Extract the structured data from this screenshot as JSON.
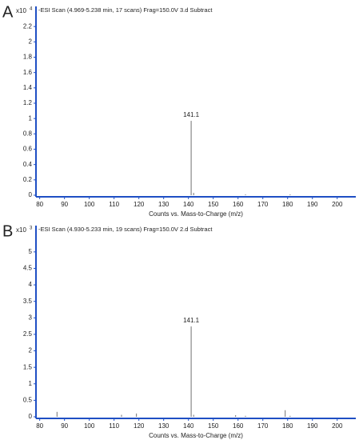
{
  "chart_data": [
    {
      "type": "stem",
      "panel_label": "A",
      "multiplier": "x10",
      "exponent": "4",
      "title": "-ESI Scan (4.969-5.238 min, 17 scans) Frag=150.0V 3.d  Subtract",
      "x_label": "Counts vs. Mass-to-Charge (m/z)",
      "x": [
        141.1,
        142.1,
        163.0,
        181.0
      ],
      "values": [
        0.97,
        0.03,
        0.01,
        0.01
      ],
      "color": "#8a8a8a",
      "axis_color": "#1f4fc4",
      "xlim": [
        78.5,
        207.5
      ],
      "xticks": [
        80,
        90,
        100,
        110,
        120,
        130,
        140,
        150,
        160,
        170,
        180,
        190,
        200
      ],
      "ylim": [
        0,
        2.4
      ],
      "yticks": [
        0,
        0.2,
        0.4,
        0.6,
        0.8,
        1,
        1.2,
        1.4,
        1.6,
        1.8,
        2,
        2.2
      ],
      "annotations": [
        {
          "text": "141.1",
          "x": 141.1,
          "y": 0.97
        }
      ]
    },
    {
      "type": "stem",
      "panel_label": "B",
      "multiplier": "x10",
      "exponent": "3",
      "title": "-ESI Scan (4.930-5.233 min, 19 scans) Frag=150.0V 2.d  Subtract",
      "x_label": "Counts vs. Mass-to-Charge (m/z)",
      "x": [
        87.0,
        113.0,
        119.0,
        141.1,
        142.1,
        159.0,
        163.0,
        179.0,
        181.0
      ],
      "values": [
        0.15,
        0.06,
        0.1,
        2.74,
        0.06,
        0.05,
        0.03,
        0.2,
        0.03
      ],
      "color": "#8a8a8a",
      "axis_color": "#1f4fc4",
      "xlim": [
        78.5,
        207.5
      ],
      "xticks": [
        80,
        90,
        100,
        110,
        120,
        130,
        140,
        150,
        160,
        170,
        180,
        190,
        200
      ],
      "ylim": [
        0,
        5.7
      ],
      "yticks": [
        0,
        0.5,
        1,
        1.5,
        2,
        2.5,
        3,
        3.5,
        4,
        4.5,
        5
      ],
      "annotations": [
        {
          "text": "141.1",
          "x": 141.1,
          "y": 2.74
        }
      ]
    }
  ]
}
